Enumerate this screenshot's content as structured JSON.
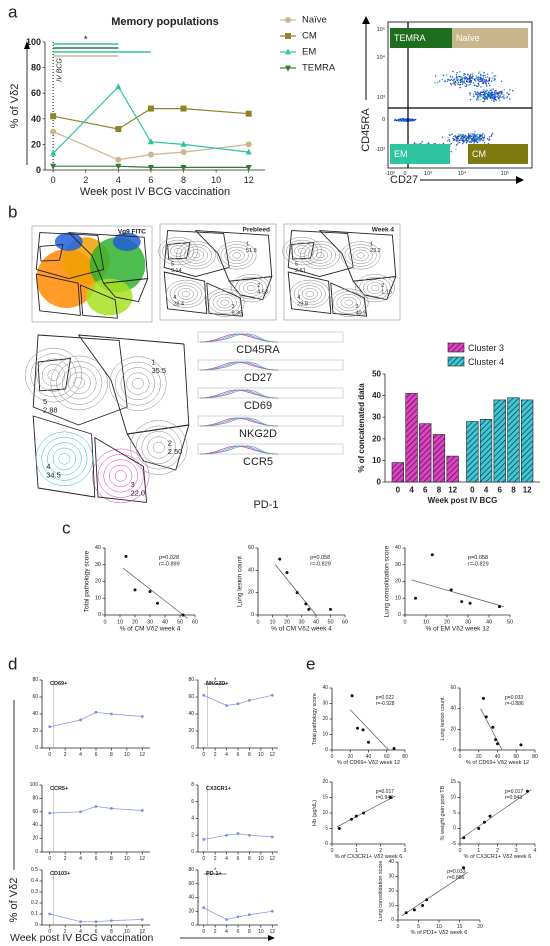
{
  "panel_labels": [
    "a",
    "b",
    "c",
    "d",
    "e"
  ],
  "flow_a": {
    "y_label": "CD45RA",
    "x_label": "CD27",
    "gates": [
      "TEMRA",
      "Naïve",
      "EM",
      "CM"
    ],
    "yticks": [
      "10⁵",
      "10⁴",
      "10³",
      "0",
      "-10³"
    ],
    "xticks": [
      "-10³",
      "0",
      "10³",
      "10⁴",
      "10⁵"
    ]
  },
  "tsne": [
    {
      "title": "Vg9 FITC"
    },
    {
      "title": "Prebleed",
      "clusters": [
        {
          "id": "1",
          "pct": "51.8"
        },
        {
          "id": "2",
          "pct": "4.53"
        },
        {
          "id": "3",
          "pct": "9.36"
        },
        {
          "id": "4",
          "pct": "28.4"
        },
        {
          "id": "5",
          "pct": "3.14"
        }
      ]
    },
    {
      "title": "Week 4",
      "clusters": [
        {
          "id": "1",
          "pct": "23.2"
        },
        {
          "id": "2",
          "pct": "1.16"
        },
        {
          "id": "3",
          "pct": "40.9"
        },
        {
          "id": "4",
          "pct": "29.8"
        },
        {
          "id": "5",
          "pct": "2.61"
        }
      ]
    },
    {
      "clusters": [
        {
          "id": "1",
          "pct": "35.5"
        },
        {
          "id": "2",
          "pct": "2.50"
        },
        {
          "id": "3",
          "pct": "22.0"
        },
        {
          "id": "4",
          "pct": "34.5"
        },
        {
          "id": "5",
          "pct": "2.88"
        }
      ]
    }
  ],
  "histograms": [
    "CD45RA",
    "CD27",
    "CD69",
    "NKG2D",
    "CCR5",
    "PD-1"
  ],
  "panel_d": {
    "y_label": "% of Vδ2",
    "x_label": "Week post IV BCG vaccination"
  },
  "chart_data": [
    {
      "type": "line",
      "title": "Memory populations",
      "x_label": "Week post IV BCG vaccination",
      "y_label": "% of Vδ2",
      "annotations": [
        "IV BCG",
        "*"
      ],
      "legend": "right",
      "x": [
        0,
        4,
        6,
        8,
        12
      ],
      "xlim": [
        -0.5,
        13
      ],
      "xticks": [
        0,
        2,
        4,
        6,
        8,
        10,
        12
      ],
      "ylim": [
        0,
        100
      ],
      "yticks": [
        0,
        20,
        40,
        60,
        80,
        100
      ],
      "series": [
        {
          "name": "Naïve",
          "color": "#c9b68c",
          "marker": "circle",
          "values": [
            30,
            8,
            12,
            14,
            20
          ]
        },
        {
          "name": "CM",
          "color": "#8f8229",
          "marker": "square",
          "values": [
            42,
            32,
            48,
            48,
            44
          ]
        },
        {
          "name": "EM",
          "color": "#2ec4a0",
          "marker": "triangle",
          "values": [
            13,
            65,
            22,
            20,
            14
          ]
        },
        {
          "name": "TEMRA",
          "color": "#2e7d32",
          "marker": "down",
          "values": [
            3,
            3,
            2,
            2,
            2
          ]
        }
      ]
    },
    {
      "type": "bar",
      "x_label": "Week post IV BCG",
      "y_label": "% of concatenated data",
      "categories": [
        "0",
        "4",
        "6",
        "8",
        "12"
      ],
      "ylim": [
        0,
        50
      ],
      "yticks": [
        0,
        10,
        20,
        30,
        40,
        50
      ],
      "series": [
        {
          "name": "Cluster 3",
          "color": "#e040c8",
          "values": [
            9,
            41,
            27,
            22,
            12
          ]
        },
        {
          "name": "Cluster 4",
          "color": "#3cc8d8",
          "values": [
            28,
            29,
            38,
            39,
            38
          ]
        }
      ]
    },
    {
      "type": "scatter",
      "x_label": "% of CM Vδ2 week 4",
      "y_label": "Total pathology score",
      "annotations": [
        "p=0.028",
        "r=-0.899"
      ],
      "x": [
        14,
        20,
        30,
        35,
        52
      ],
      "values": [
        35,
        15,
        14,
        7,
        0
      ],
      "fit": [
        [
          12,
          28
        ],
        [
          55,
          -2
        ]
      ],
      "xlim": [
        0,
        60
      ],
      "xticks": [
        0,
        10,
        20,
        30,
        40,
        50,
        60
      ],
      "ylim": [
        0,
        40
      ],
      "yticks": [
        0,
        10,
        20,
        30,
        40
      ]
    },
    {
      "type": "scatter",
      "x_label": "% of CM Vδ2 week 4",
      "y_label": "Lung lesion count",
      "annotations": [
        "p=0.058",
        "r=-0.829"
      ],
      "x": [
        15,
        20,
        27,
        33,
        35,
        50
      ],
      "values": [
        50,
        38,
        20,
        10,
        5,
        5
      ],
      "fit": [
        [
          12,
          45
        ],
        [
          40,
          0
        ]
      ],
      "xlim": [
        0,
        60
      ],
      "xticks": [
        0,
        10,
        20,
        30,
        40,
        50,
        60
      ],
      "ylim": [
        0,
        60
      ],
      "yticks": [
        0,
        20,
        40,
        60
      ]
    },
    {
      "type": "scatter",
      "x_label": "% of EM Vδ2 week 12",
      "y_label": "Lung consolidation score",
      "annotations": [
        "p=0.058",
        "r=-0.829"
      ],
      "x": [
        5,
        13,
        22,
        27,
        31,
        45
      ],
      "values": [
        10,
        36,
        15,
        8,
        7,
        5
      ],
      "fit": [
        [
          3,
          21
        ],
        [
          47,
          5
        ]
      ],
      "xlim": [
        0,
        50
      ],
      "xticks": [
        0,
        10,
        20,
        30,
        40,
        50
      ],
      "ylim": [
        0,
        40
      ],
      "yticks": [
        0,
        10,
        20,
        30,
        40
      ]
    },
    {
      "type": "line",
      "title": "CD69+",
      "color": "#2233cc",
      "x": [
        0,
        4,
        6,
        8,
        12
      ],
      "values": [
        25,
        33,
        42,
        40,
        37
      ],
      "xlim": [
        -1,
        13
      ],
      "xticks": [
        0,
        2,
        4,
        6,
        8,
        10,
        12
      ],
      "ylim": [
        0,
        80
      ],
      "yticks": [
        0,
        20,
        40,
        60,
        80
      ]
    },
    {
      "type": "line",
      "title": "NKG2D+",
      "annotations": [
        "*"
      ],
      "color": "#2233cc",
      "x": [
        0,
        4,
        6,
        8,
        12
      ],
      "values": [
        62,
        50,
        52,
        56,
        62
      ],
      "xlim": [
        -1,
        13
      ],
      "xticks": [
        0,
        2,
        4,
        6,
        8,
        10,
        12
      ],
      "ylim": [
        0,
        80
      ],
      "yticks": [
        0,
        20,
        40,
        60,
        80
      ]
    },
    {
      "type": "line",
      "title": "CCR5+",
      "color": "#2233cc",
      "x": [
        0,
        4,
        6,
        8,
        12
      ],
      "values": [
        58,
        60,
        68,
        65,
        62
      ],
      "xlim": [
        -1,
        13
      ],
      "xticks": [
        0,
        2,
        4,
        6,
        8,
        10,
        12
      ],
      "ylim": [
        0,
        100
      ],
      "yticks": [
        0,
        20,
        40,
        60,
        80,
        100
      ]
    },
    {
      "type": "line",
      "title": "CX3CR1+",
      "color": "#2233cc",
      "x": [
        0,
        4,
        6,
        8,
        12
      ],
      "values": [
        1.5,
        2,
        2.2,
        2,
        1.8
      ],
      "xlim": [
        -1,
        13
      ],
      "xticks": [
        0,
        2,
        4,
        6,
        8,
        10,
        12
      ],
      "ylim": [
        0,
        8
      ],
      "yticks": [
        0,
        2,
        4,
        6,
        8
      ]
    },
    {
      "type": "line",
      "title": "CD103+",
      "color": "#2233cc",
      "x": [
        0,
        4,
        6,
        8,
        12
      ],
      "values": [
        0.1,
        0.03,
        0.03,
        0.04,
        0.05
      ],
      "xlim": [
        -1,
        13
      ],
      "xticks": [
        0,
        2,
        4,
        6,
        8,
        10,
        12
      ],
      "ylim": [
        0,
        0.5
      ],
      "yticks": [
        0,
        0.1,
        0.2,
        0.3,
        0.4,
        0.5
      ]
    },
    {
      "type": "line",
      "title": "PD-1+",
      "annotations": [
        "*"
      ],
      "color": "#2233cc",
      "x": [
        0,
        4,
        6,
        8,
        12
      ],
      "values": [
        25,
        8,
        12,
        15,
        20
      ],
      "xlim": [
        -1,
        13
      ],
      "xticks": [
        0,
        2,
        4,
        6,
        8,
        10,
        12
      ],
      "ylim": [
        0,
        80
      ],
      "yticks": [
        0,
        20,
        40,
        60,
        80
      ]
    },
    {
      "type": "scatter",
      "x_label": "% of CD69+ Vδ2 week 12",
      "y_label": "Total pathology score",
      "annotations": [
        "p=0.022",
        "r=-0.928"
      ],
      "x": [
        22,
        28,
        34,
        40,
        68
      ],
      "values": [
        35,
        14,
        13,
        5,
        1
      ],
      "fit": [
        [
          20,
          26
        ],
        [
          62,
          0
        ]
      ],
      "xlim": [
        0,
        80
      ],
      "xticks": [
        0,
        20,
        40,
        60,
        80
      ],
      "ylim": [
        0,
        40
      ],
      "yticks": [
        0,
        10,
        20,
        30,
        40
      ]
    },
    {
      "type": "scatter",
      "x_label": "% of CD69+ Vδ2 week 12",
      "y_label": "Lung lesion count",
      "annotations": [
        "p=0.033",
        "r=-0.886"
      ],
      "x": [
        25,
        28,
        35,
        38,
        40,
        65
      ],
      "values": [
        50,
        32,
        22,
        10,
        6,
        5
      ],
      "fit": [
        [
          22,
          40
        ],
        [
          45,
          0
        ]
      ],
      "xlim": [
        0,
        80
      ],
      "xticks": [
        0,
        20,
        40,
        60,
        80
      ],
      "ylim": [
        0,
        60
      ],
      "yticks": [
        0,
        20,
        40,
        60
      ]
    },
    {
      "type": "scatter",
      "x_label": "% of CX3CR1+ Vδ2 week 6",
      "y_label": "Hb (μg/dL)",
      "annotations": [
        "p=0.017",
        "r=0.943"
      ],
      "x": [
        0.3,
        0.8,
        1.0,
        1.3,
        2.4
      ],
      "values": [
        5,
        8,
        9,
        10,
        15
      ],
      "fit": [
        [
          0.2,
          5.5
        ],
        [
          2.6,
          15.5
        ]
      ],
      "xlim": [
        0,
        3
      ],
      "xticks": [
        0,
        1,
        2,
        3
      ],
      "ylim": [
        0,
        20
      ],
      "yticks": [
        0,
        5,
        10,
        15,
        20
      ]
    },
    {
      "type": "scatter",
      "x_label": "% of CX3CR1+ Vδ2 week 6",
      "y_label": "% weight gain post TB",
      "annotations": [
        "p=0.017",
        "r=0.943"
      ],
      "x": [
        0.2,
        1,
        1.3,
        1.6,
        3.6
      ],
      "values": [
        -3,
        0,
        2,
        4,
        12
      ],
      "fit": [
        [
          0,
          -3.5
        ],
        [
          3.8,
          12.5
        ]
      ],
      "xlim": [
        0,
        4
      ],
      "xticks": [
        0,
        1,
        2,
        3,
        4
      ],
      "ylim": [
        -5,
        15
      ],
      "yticks": [
        -5,
        0,
        5,
        10,
        15
      ]
    },
    {
      "type": "scatter",
      "x_label": "% of PD1+ Vδ2 week 6",
      "y_label": "Lung consolidation score",
      "annotations": [
        "p=0.033",
        "r=0.886"
      ],
      "x": [
        2,
        4,
        6,
        7,
        16
      ],
      "values": [
        5,
        7,
        10,
        14,
        36
      ],
      "fit": [
        [
          1,
          3
        ],
        [
          17,
          33
        ]
      ],
      "xlim": [
        0,
        20
      ],
      "xticks": [
        0,
        5,
        10,
        15,
        20
      ],
      "ylim": [
        0,
        40
      ],
      "yticks": [
        0,
        10,
        20,
        30,
        40
      ]
    }
  ]
}
